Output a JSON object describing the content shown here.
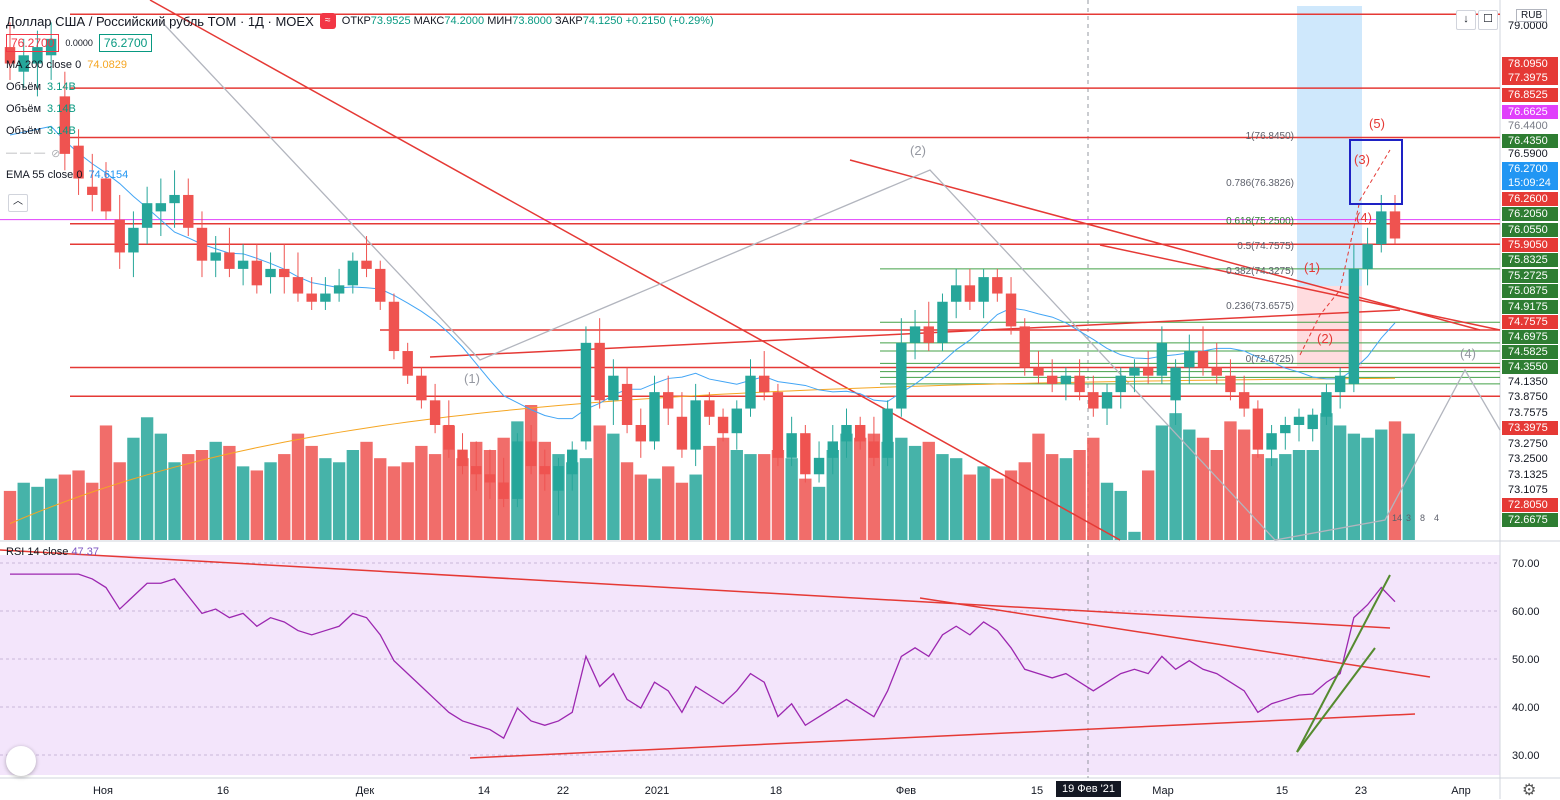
{
  "header": {
    "symbol": "Доллар США / Российский рубль TOM · 1Д · MOEX",
    "ohlc": [
      {
        "label": "ОТКР",
        "value": "73.9525"
      },
      {
        "label": "МАКС",
        "value": "74.2000"
      },
      {
        "label": "МИН",
        "value": "73.8000"
      },
      {
        "label": "ЗАКР",
        "value": "74.1250"
      }
    ],
    "change": "+0.2150 (+0.29%)",
    "bid": "76.2700",
    "spread": "0.0000",
    "ask": "76.2700",
    "currency": "RUB"
  },
  "indicators": [
    {
      "label": "MA 200 close 0",
      "value": "74.0829",
      "color": "#f5a623"
    },
    {
      "label": "Объём",
      "value": "3.14B",
      "color": "#089981"
    },
    {
      "label": "Объём",
      "value": "3.14B",
      "color": "#089981"
    },
    {
      "label": "Объём",
      "value": "3.14B",
      "color": "#089981"
    },
    {
      "label": "EMA 55 close 0",
      "value": "74.6154",
      "color": "#2196f3"
    }
  ],
  "rsi_legend": {
    "label": "RSI 14 close",
    "value": "47.37"
  },
  "price_axis": [
    "79.0000",
    "78.0950",
    "77.3975",
    "76.8525",
    "76.6625",
    "76.4400",
    "76.4350",
    "76.5900",
    "76.2700",
    "15:09:24",
    "76.2600",
    "76.2050",
    "76.0550",
    "75.9050",
    "75.8325",
    "75.2725",
    "75.0875",
    "74.9175",
    "74.7575",
    "74.6975",
    "74.5825",
    "74.3550",
    "74.1350",
    "73.8750",
    "73.7575",
    "73.3975",
    "73.2750",
    "73.2500",
    "73.1325",
    "73.1075",
    "72.8050",
    "72.6675"
  ],
  "rsi_axis": [
    "70.00",
    "60.00",
    "50.00",
    "40.00",
    "30.00"
  ],
  "time_axis": [
    "Ноя",
    "16",
    "Дек",
    "14",
    "22",
    "2021",
    "18",
    "Фев",
    "15",
    "Мар",
    "15",
    "23",
    "Апр"
  ],
  "crosshair_date": "19 Фев '21",
  "annotations": {
    "wave_labels_gray": [
      "(1)",
      "(2)",
      "(4)"
    ],
    "wave_labels_red": [
      "(5)",
      "(3)",
      "(4)",
      "(1)",
      "(2)"
    ],
    "fib_labels": [
      "1(76.8450)",
      "0.786(76.3826)",
      "0.618(75.2500)",
      "0.5(74.7575)",
      "0.382(74.3275)",
      "0.236(73.6575)",
      "0(72.6725)"
    ],
    "misc": [
      "14",
      "3",
      "8",
      "4"
    ]
  },
  "chart_data": {
    "type": "candlestick",
    "title": "Доллар США / Российский рубль TOM",
    "ylim": [
      72.6,
      79.1
    ],
    "rsi_ylim": [
      27,
      73
    ],
    "candles": [
      [
        78.6,
        78.9,
        78.2,
        78.4
      ],
      [
        78.3,
        78.7,
        78.1,
        78.5
      ],
      [
        78.4,
        78.8,
        78.0,
        78.6
      ],
      [
        78.5,
        78.9,
        78.2,
        78.7
      ],
      [
        78.0,
        78.3,
        77.1,
        77.3
      ],
      [
        77.4,
        77.6,
        76.8,
        77.0
      ],
      [
        76.9,
        77.3,
        76.6,
        76.8
      ],
      [
        77.0,
        77.2,
        76.5,
        76.6
      ],
      [
        76.5,
        76.8,
        75.9,
        76.1
      ],
      [
        76.1,
        76.6,
        75.8,
        76.4
      ],
      [
        76.4,
        76.9,
        76.2,
        76.7
      ],
      [
        76.6,
        77.0,
        76.3,
        76.7
      ],
      [
        76.7,
        77.1,
        76.4,
        76.8
      ],
      [
        76.8,
        77.0,
        76.3,
        76.4
      ],
      [
        76.4,
        76.6,
        75.8,
        76.0
      ],
      [
        76.0,
        76.3,
        75.8,
        76.1
      ],
      [
        76.1,
        76.4,
        75.8,
        75.9
      ],
      [
        75.9,
        76.2,
        75.7,
        76.0
      ],
      [
        76.0,
        76.2,
        75.6,
        75.7
      ],
      [
        75.8,
        76.1,
        75.6,
        75.9
      ],
      [
        75.9,
        76.2,
        75.6,
        75.8
      ],
      [
        75.8,
        76.1,
        75.5,
        75.6
      ],
      [
        75.6,
        75.8,
        75.4,
        75.5
      ],
      [
        75.5,
        75.8,
        75.4,
        75.6
      ],
      [
        75.6,
        75.9,
        75.5,
        75.7
      ],
      [
        75.7,
        76.1,
        75.6,
        76.0
      ],
      [
        76.0,
        76.3,
        75.8,
        75.9
      ],
      [
        75.9,
        76.0,
        75.4,
        75.5
      ],
      [
        75.5,
        75.6,
        74.8,
        74.9
      ],
      [
        74.9,
        75.0,
        74.5,
        74.6
      ],
      [
        74.6,
        74.7,
        74.2,
        74.3
      ],
      [
        74.3,
        74.5,
        73.9,
        74.0
      ],
      [
        74.0,
        74.3,
        73.6,
        73.7
      ],
      [
        73.7,
        73.9,
        73.4,
        73.5
      ],
      [
        73.5,
        73.8,
        73.2,
        73.4
      ],
      [
        73.4,
        73.7,
        73.1,
        73.3
      ],
      [
        73.3,
        73.6,
        73.0,
        73.1
      ],
      [
        73.1,
        73.9,
        73.0,
        73.8
      ],
      [
        73.8,
        74.0,
        73.4,
        73.5
      ],
      [
        73.5,
        73.7,
        73.2,
        73.4
      ],
      [
        73.2,
        73.6,
        72.9,
        73.5
      ],
      [
        73.4,
        73.8,
        73.2,
        73.7
      ],
      [
        73.8,
        75.2,
        73.7,
        75.0
      ],
      [
        75.0,
        75.3,
        74.2,
        74.3
      ],
      [
        74.3,
        74.8,
        74.0,
        74.6
      ],
      [
        74.5,
        74.7,
        73.9,
        74.0
      ],
      [
        74.0,
        74.2,
        73.6,
        73.8
      ],
      [
        73.8,
        74.6,
        73.7,
        74.4
      ],
      [
        74.4,
        74.6,
        74.0,
        74.2
      ],
      [
        74.1,
        74.4,
        73.6,
        73.7
      ],
      [
        73.7,
        74.5,
        73.5,
        74.3
      ],
      [
        74.3,
        74.4,
        74.0,
        74.1
      ],
      [
        74.1,
        74.2,
        73.8,
        73.9
      ],
      [
        73.9,
        74.3,
        73.7,
        74.2
      ],
      [
        74.2,
        74.8,
        74.1,
        74.6
      ],
      [
        74.6,
        74.9,
        74.3,
        74.4
      ],
      [
        74.4,
        74.5,
        73.5,
        73.6
      ],
      [
        73.6,
        74.1,
        73.5,
        73.9
      ],
      [
        73.9,
        74.0,
        73.3,
        73.4
      ],
      [
        73.4,
        73.8,
        73.3,
        73.6
      ],
      [
        73.6,
        74.0,
        73.4,
        73.8
      ],
      [
        73.8,
        74.2,
        73.6,
        74.0
      ],
      [
        74.0,
        74.1,
        73.7,
        73.8
      ],
      [
        73.8,
        74.1,
        73.5,
        73.6
      ],
      [
        73.6,
        74.3,
        73.5,
        74.2
      ],
      [
        74.2,
        75.3,
        74.1,
        75.0
      ],
      [
        75.0,
        75.4,
        74.8,
        75.2
      ],
      [
        75.2,
        75.5,
        74.9,
        75.0
      ],
      [
        75.0,
        75.6,
        74.9,
        75.5
      ],
      [
        75.5,
        75.9,
        75.3,
        75.7
      ],
      [
        75.7,
        75.9,
        75.4,
        75.5
      ],
      [
        75.5,
        75.9,
        75.3,
        75.8
      ],
      [
        75.8,
        75.9,
        75.5,
        75.6
      ],
      [
        75.6,
        75.8,
        75.1,
        75.2
      ],
      [
        75.2,
        75.3,
        74.6,
        74.7
      ],
      [
        74.7,
        74.9,
        74.5,
        74.6
      ],
      [
        74.6,
        74.8,
        74.4,
        74.5
      ],
      [
        74.5,
        74.7,
        74.3,
        74.6
      ],
      [
        74.6,
        74.8,
        74.3,
        74.4
      ],
      [
        74.4,
        74.6,
        74.1,
        74.2
      ],
      [
        74.2,
        74.5,
        74.0,
        74.4
      ],
      [
        74.4,
        74.7,
        74.2,
        74.6
      ],
      [
        74.6,
        74.8,
        74.4,
        74.7
      ],
      [
        74.7,
        74.9,
        74.5,
        74.6
      ],
      [
        74.6,
        75.2,
        74.5,
        75.0
      ],
      [
        74.3,
        74.8,
        74.0,
        74.7
      ],
      [
        74.7,
        75.1,
        74.5,
        74.9
      ],
      [
        74.9,
        75.2,
        74.6,
        74.7
      ],
      [
        74.7,
        75.0,
        74.5,
        74.6
      ],
      [
        74.6,
        74.8,
        74.3,
        74.4
      ],
      [
        74.4,
        74.6,
        74.1,
        74.2
      ],
      [
        74.2,
        74.3,
        73.6,
        73.7
      ],
      [
        73.7,
        74.0,
        73.5,
        73.9
      ],
      [
        73.9,
        74.1,
        73.7,
        74.0
      ],
      [
        74.0,
        74.2,
        73.8,
        74.1
      ],
      [
        73.95,
        74.2,
        73.8,
        74.125
      ],
      [
        74.1,
        74.5,
        74.0,
        74.4
      ],
      [
        74.4,
        74.7,
        74.2,
        74.6
      ],
      [
        74.5,
        76.2,
        74.4,
        75.9
      ],
      [
        75.9,
        76.4,
        75.7,
        76.2
      ],
      [
        76.2,
        76.8,
        76.1,
        76.6
      ],
      [
        76.6,
        76.8,
        76.2,
        76.27
      ]
    ],
    "volume": [
      1.2,
      1.4,
      1.3,
      1.5,
      1.6,
      1.7,
      1.4,
      2.8,
      1.9,
      2.5,
      3.0,
      2.6,
      1.9,
      2.1,
      2.2,
      2.4,
      2.3,
      1.8,
      1.7,
      1.9,
      2.1,
      2.6,
      2.3,
      2.0,
      1.9,
      2.2,
      2.4,
      2.0,
      1.8,
      1.9,
      2.3,
      2.1,
      2.8,
      2.0,
      2.4,
      2.2,
      2.5,
      2.9,
      3.3,
      2.4,
      2.1,
      1.9,
      2.0,
      2.8,
      2.6,
      1.9,
      1.6,
      1.5,
      1.8,
      1.4,
      1.6,
      2.3,
      2.5,
      2.2,
      2.1,
      2.1,
      2.2,
      2.0,
      1.5,
      1.3,
      2.2,
      2.6,
      2.5,
      2.6,
      2.4,
      2.5,
      2.3,
      2.4,
      2.1,
      2.0,
      1.6,
      1.8,
      1.5,
      1.7,
      1.9,
      2.6,
      2.1,
      2.0,
      2.2,
      2.5,
      1.4,
      1.2,
      0.2,
      1.7,
      2.8,
      3.1,
      2.7,
      2.5,
      2.2,
      2.9,
      2.7,
      2.1,
      2.0,
      2.1,
      2.2,
      2.2,
      3.1,
      2.8,
      2.6,
      2.5,
      2.7,
      2.9,
      2.6
    ]
  }
}
